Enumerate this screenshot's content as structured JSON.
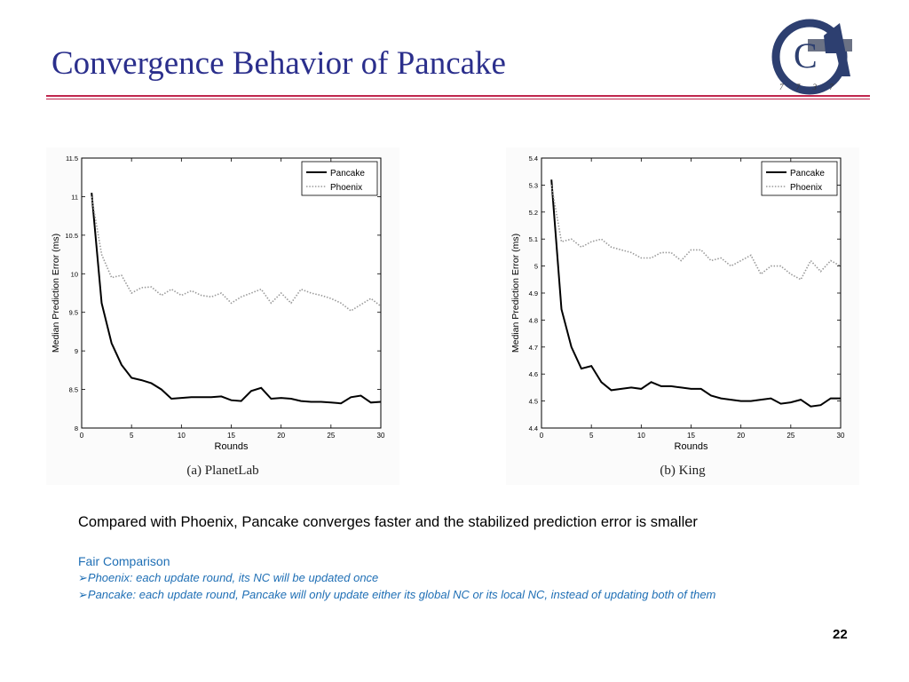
{
  "title": "Convergence Behavior of Pancake",
  "logo": {
    "letters": "CGA",
    "caption": "7 7 3 7"
  },
  "description": "Compared with Phoenix, Pancake converges faster and the stabilized prediction error is smaller",
  "fair_heading": "Fair Comparison",
  "bullets": [
    "Phoenix: each update round, its NC will be updated once",
    "Pancake: each update round, Pancake will only update either its global NC or its local NC, instead of updating both of them"
  ],
  "bullet_marker": "➢",
  "page_number": "22",
  "colors": {
    "title": "#2b2f8c",
    "rule": "#c0264e",
    "accent_text": "#1f6fb5"
  },
  "chart_data": [
    {
      "type": "line",
      "caption": "(a) PlanetLab",
      "xlabel": "Rounds",
      "ylabel": "Median Prediction Error (ms)",
      "xlim": [
        0,
        30
      ],
      "ylim": [
        8,
        11.5
      ],
      "xticks": [
        0,
        5,
        10,
        15,
        20,
        25,
        30
      ],
      "yticks": [
        8,
        8.5,
        9,
        9.5,
        10,
        10.5,
        11,
        11.5
      ],
      "grid": false,
      "legend_position": "top-right",
      "x": [
        1,
        2,
        3,
        4,
        5,
        6,
        7,
        8,
        9,
        10,
        11,
        12,
        13,
        14,
        15,
        16,
        17,
        18,
        19,
        20,
        21,
        22,
        23,
        24,
        25,
        26,
        27,
        28,
        29,
        30
      ],
      "series": [
        {
          "name": "Pancake",
          "style": "solid",
          "values": [
            11.05,
            9.62,
            9.1,
            8.82,
            8.65,
            8.62,
            8.58,
            8.5,
            8.38,
            8.39,
            8.4,
            8.4,
            8.4,
            8.41,
            8.36,
            8.35,
            8.48,
            8.52,
            8.38,
            8.39,
            8.38,
            8.35,
            8.34,
            8.34,
            8.33,
            8.32,
            8.4,
            8.42,
            8.33,
            8.34
          ]
        },
        {
          "name": "Phoenix",
          "style": "dotted",
          "values": [
            11.0,
            10.25,
            9.95,
            9.98,
            9.75,
            9.82,
            9.83,
            9.72,
            9.8,
            9.72,
            9.78,
            9.72,
            9.7,
            9.75,
            9.62,
            9.7,
            9.75,
            9.8,
            9.62,
            9.75,
            9.62,
            9.8,
            9.75,
            9.72,
            9.68,
            9.62,
            9.52,
            9.6,
            9.68,
            9.58
          ]
        }
      ]
    },
    {
      "type": "line",
      "caption": "(b) King",
      "xlabel": "Rounds",
      "ylabel": "Median Prediction Error (ms)",
      "xlim": [
        0,
        30
      ],
      "ylim": [
        4.4,
        5.4
      ],
      "xticks": [
        0,
        5,
        10,
        15,
        20,
        25,
        30
      ],
      "yticks": [
        4.4,
        4.5,
        4.6,
        4.7,
        4.8,
        4.9,
        5,
        5.1,
        5.2,
        5.3,
        5.4
      ],
      "grid": false,
      "legend_position": "top-right",
      "x": [
        1,
        2,
        3,
        4,
        5,
        6,
        7,
        8,
        9,
        10,
        11,
        12,
        13,
        14,
        15,
        16,
        17,
        18,
        19,
        20,
        21,
        22,
        23,
        24,
        25,
        26,
        27,
        28,
        29,
        30
      ],
      "series": [
        {
          "name": "Pancake",
          "style": "solid",
          "values": [
            5.32,
            4.84,
            4.7,
            4.62,
            4.63,
            4.57,
            4.54,
            4.545,
            4.55,
            4.545,
            4.57,
            4.555,
            4.555,
            4.55,
            4.545,
            4.545,
            4.52,
            4.51,
            4.505,
            4.5,
            4.5,
            4.505,
            4.51,
            4.49,
            4.495,
            4.505,
            4.48,
            4.485,
            4.51,
            4.51
          ]
        },
        {
          "name": "Phoenix",
          "style": "dotted",
          "values": [
            5.3,
            5.09,
            5.1,
            5.07,
            5.09,
            5.1,
            5.07,
            5.06,
            5.05,
            5.03,
            5.03,
            5.05,
            5.05,
            5.02,
            5.06,
            5.06,
            5.02,
            5.03,
            5.0,
            5.02,
            5.04,
            4.97,
            5.0,
            5.0,
            4.97,
            4.95,
            5.02,
            4.98,
            5.02,
            5.0
          ]
        }
      ]
    }
  ]
}
